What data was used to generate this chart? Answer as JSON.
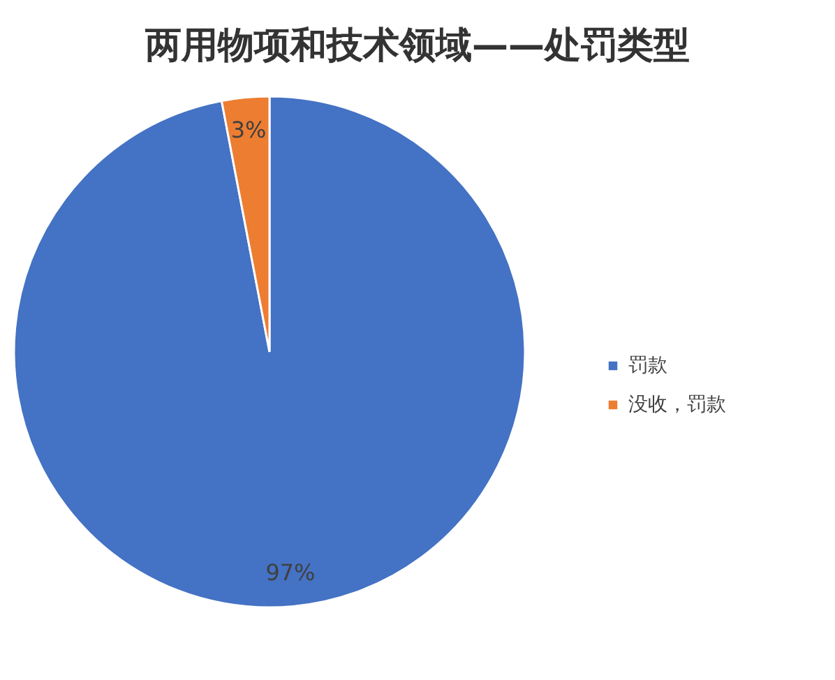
{
  "chart_data": {
    "type": "pie",
    "title": "两用物项和技术领域——处罚类型",
    "categories": [
      "罚款",
      "没收，罚款"
    ],
    "values": [
      97,
      3
    ],
    "colors": [
      "#4472c4",
      "#ed7d31"
    ],
    "value_labels": [
      "97%",
      "3%"
    ],
    "legend": "right"
  }
}
